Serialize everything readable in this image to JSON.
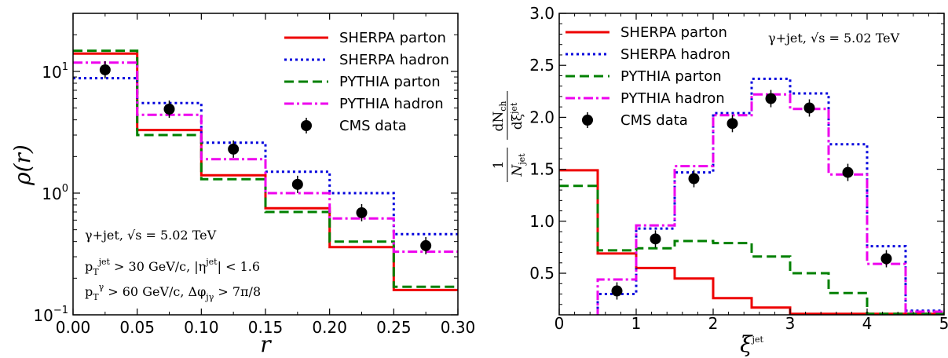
{
  "chart_data": [
    {
      "type": "line",
      "subtype": "step-histogram",
      "xlabel": "r",
      "ylabel": "ρ(r)",
      "yscale": "log",
      "xlim": [
        0.0,
        0.3
      ],
      "ylim": [
        0.1,
        30
      ],
      "x_ticks": [
        "0.00",
        "0.05",
        "0.10",
        "0.15",
        "0.20",
        "0.25",
        "0.30"
      ],
      "y_ticks": [
        "10⁻¹",
        "10⁰",
        "10¹"
      ],
      "bin_edges": [
        0.0,
        0.05,
        0.1,
        0.15,
        0.2,
        0.25,
        0.3
      ],
      "legend_position": "top-right",
      "series": [
        {
          "name": "SHERPA parton",
          "color": "#ee0000",
          "style": "solid",
          "values": [
            14.0,
            3.3,
            1.4,
            0.75,
            0.36,
            0.16
          ]
        },
        {
          "name": "SHERPA hadron",
          "color": "#0000dd",
          "style": "dotted",
          "values": [
            8.8,
            5.5,
            2.6,
            1.5,
            1.0,
            0.46
          ]
        },
        {
          "name": "PYTHIA parton",
          "color": "#008000",
          "style": "dashed",
          "values": [
            14.8,
            3.0,
            1.3,
            0.7,
            0.4,
            0.17
          ]
        },
        {
          "name": "PYTHIA hadron",
          "color": "#ee00ee",
          "style": "dashdot",
          "values": [
            11.8,
            4.4,
            1.9,
            1.0,
            0.62,
            0.33
          ]
        }
      ],
      "data_points": {
        "name": "CMS data",
        "x": [
          0.025,
          0.075,
          0.125,
          0.175,
          0.225,
          0.275
        ],
        "y": [
          10.3,
          4.9,
          2.3,
          1.18,
          0.69,
          0.37
        ]
      },
      "annotations": [
        "γ+jet, √s = 5.02 TeV",
        "p_T^jet > 30 GeV/c, |η^jet| < 1.6",
        "p_T^γ > 60 GeV/c, Δφ_jγ > 7π/8"
      ]
    },
    {
      "type": "line",
      "subtype": "step-histogram",
      "xlabel": "ξ^jet",
      "ylabel": "(1/N_jet) dN_ch/dξ^jet",
      "xlim": [
        0,
        5
      ],
      "ylim": [
        0.1,
        3.0
      ],
      "x_ticks": [
        "0",
        "1",
        "2",
        "3",
        "4",
        "5"
      ],
      "y_ticks": [
        "0.5",
        "1.0",
        "1.5",
        "2.0",
        "2.5",
        "3.0"
      ],
      "bin_edges": [
        0,
        0.5,
        1.0,
        1.5,
        2.0,
        2.5,
        3.0,
        3.5,
        4.0,
        4.5,
        5.0
      ],
      "legend_position": "top-left",
      "series": [
        {
          "name": "SHERPA parton",
          "color": "#ee0000",
          "style": "solid",
          "values": [
            1.49,
            0.69,
            0.55,
            0.45,
            0.26,
            0.17,
            0.11,
            0.11,
            0.11,
            0.11
          ]
        },
        {
          "name": "SHERPA hadron",
          "color": "#0000dd",
          "style": "dotted",
          "values": [
            0.05,
            0.3,
            0.93,
            1.47,
            2.04,
            2.37,
            2.23,
            1.74,
            0.76,
            0.14
          ]
        },
        {
          "name": "PYTHIA parton",
          "color": "#008000",
          "style": "dashed",
          "values": [
            1.34,
            0.72,
            0.74,
            0.81,
            0.79,
            0.66,
            0.5,
            0.31,
            0.11,
            0.11
          ]
        },
        {
          "name": "PYTHIA hadron",
          "color": "#ee00ee",
          "style": "dashdot",
          "values": [
            0.09,
            0.44,
            0.96,
            1.53,
            2.02,
            2.22,
            2.08,
            1.45,
            0.59,
            0.13
          ]
        }
      ],
      "data_points": {
        "name": "CMS data",
        "x": [
          0.75,
          1.25,
          1.75,
          2.25,
          2.75,
          3.25,
          3.75,
          4.25
        ],
        "y": [
          0.33,
          0.83,
          1.41,
          1.94,
          2.18,
          2.09,
          1.47,
          0.64
        ]
      },
      "annotations": [
        "γ+jet, √s = 5.02 TeV"
      ]
    }
  ]
}
